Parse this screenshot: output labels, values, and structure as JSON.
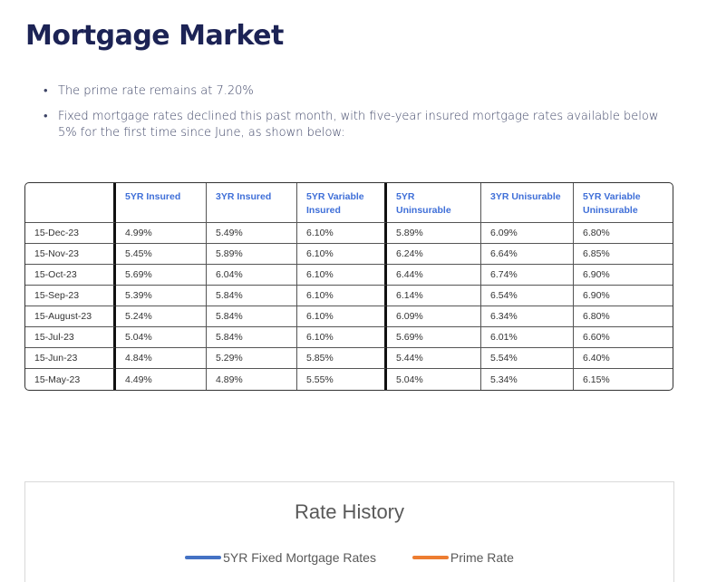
{
  "page": {
    "title": "Mortgage Market",
    "bullets": [
      "The prime rate remains at 7.20%",
      "Fixed mortgage rates declined this past month, with five-year insured mortgage rates available below 5% for the first time since June, as shown below:"
    ],
    "bullet_glyph": "•"
  },
  "table": {
    "headers": [
      "",
      "5YR Insured",
      "3YR Insured",
      "5YR Variable Insured",
      "5YR Uninsurable",
      "3YR Unisurable",
      "5YR Variable Uninsurable"
    ],
    "rows": [
      [
        "15-Dec-23",
        "4.99%",
        "5.49%",
        "6.10%",
        "5.89%",
        "6.09%",
        "6.80%"
      ],
      [
        "15-Nov-23",
        "5.45%",
        "5.89%",
        "6.10%",
        "6.24%",
        "6.64%",
        "6.85%"
      ],
      [
        "15-Oct-23",
        "5.69%",
        "6.04%",
        "6.10%",
        "6.44%",
        "6.74%",
        "6.90%"
      ],
      [
        "15-Sep-23",
        "5.39%",
        "5.84%",
        "6.10%",
        "6.14%",
        "6.54%",
        "6.90%"
      ],
      [
        "15-August-23",
        "5.24%",
        "5.84%",
        "6.10%",
        "6.09%",
        "6.34%",
        "6.80%"
      ],
      [
        "15-Jul-23",
        "5.04%",
        "5.84%",
        "6.10%",
        "5.69%",
        "6.01%",
        "6.60%"
      ],
      [
        "15-Jun-23",
        "4.84%",
        "5.29%",
        "5.85%",
        "5.44%",
        "5.54%",
        "6.40%"
      ],
      [
        "15-May-23",
        "4.49%",
        "4.89%",
        "5.55%",
        "5.04%",
        "5.34%",
        "6.15%"
      ]
    ]
  },
  "chart": {
    "title": "Rate History",
    "legend": [
      {
        "label": "5YR Fixed Mortgage Rates",
        "color": "#4472c4"
      },
      {
        "label": "Prime Rate",
        "color": "#ed7d31"
      }
    ]
  },
  "colors": {
    "title": "#1c2355",
    "header_text": "#3f6fd8",
    "series_5yr": "#4472c4",
    "series_prime": "#ed7d31"
  }
}
